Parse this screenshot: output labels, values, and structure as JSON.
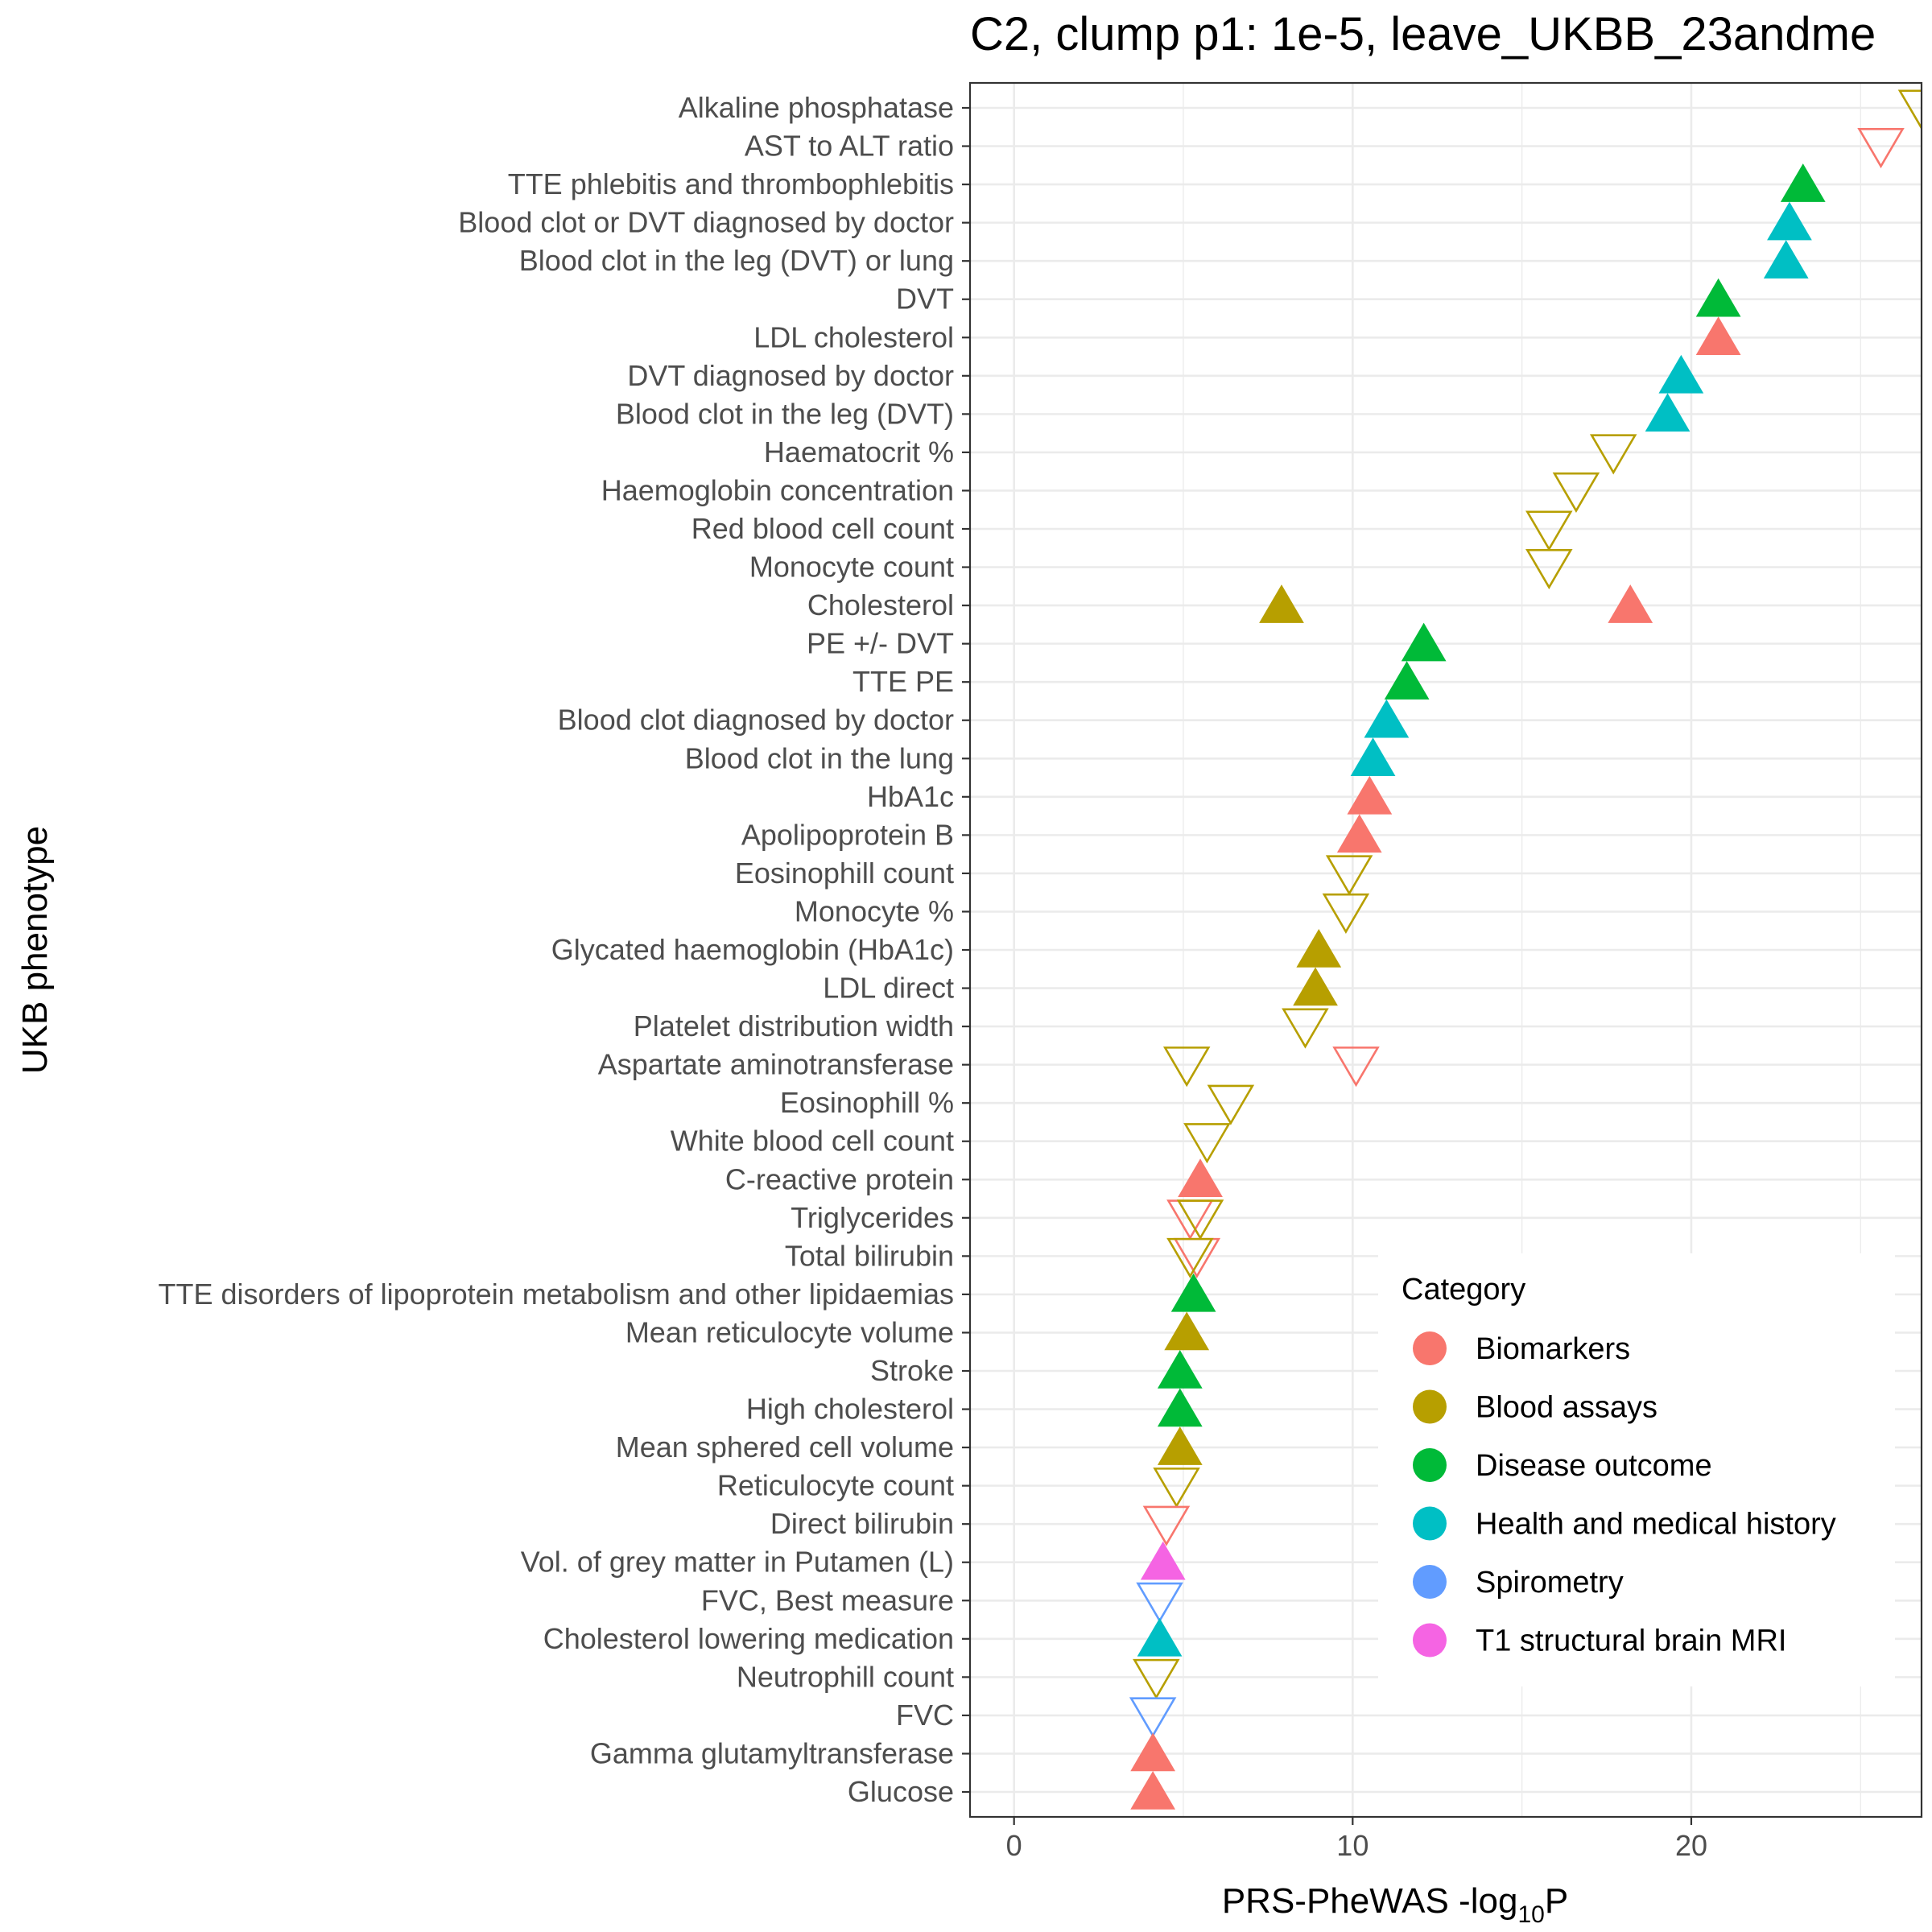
{
  "chart_data": {
    "type": "scatter",
    "title": "C2, clump p1: 1e-5, leave_UKBB_23andme",
    "xlabel": "PRS-PheWAS -log",
    "xlabel_sub": "10",
    "xlabel_suffix": "P",
    "ylabel": "UKB phenotype",
    "xlim": [
      -1.3,
      26.8
    ],
    "xticks": [
      0,
      10,
      20
    ],
    "grid": true,
    "legend": {
      "title": "Category",
      "placement": "bottom-right, inside plot",
      "entries": [
        {
          "name": "Biomarkers",
          "color": "#F8766D"
        },
        {
          "name": "Blood assays",
          "color": "#B79F00"
        },
        {
          "name": "Disease outcome",
          "color": "#00BA38"
        },
        {
          "name": "Health and medical history",
          "color": "#00BFC4"
        },
        {
          "name": "Spirometry",
          "color": "#619CFF"
        },
        {
          "name": "T1 structural brain MRI",
          "color": "#F564E3"
        }
      ]
    },
    "marker_encoding": {
      "filled_up_triangle": "positive effect",
      "open_down_triangle": "negative effect"
    },
    "categories": [
      "Alkaline phosphatase",
      "AST to ALT ratio",
      "TTE phlebitis and thrombophlebitis",
      "Blood clot or DVT diagnosed by doctor",
      "Blood clot in the leg (DVT) or lung",
      "DVT",
      "LDL cholesterol",
      "DVT diagnosed by doctor",
      "Blood clot in the leg (DVT)",
      "Haematocrit %",
      "Haemoglobin concentration",
      "Red blood cell count",
      "Monocyte count",
      "Cholesterol",
      "PE +/- DVT",
      "TTE PE",
      "Blood clot diagnosed by doctor",
      "Blood clot in the lung",
      "HbA1c",
      "Apolipoprotein B",
      "Eosinophill count",
      "Monocyte %",
      "Glycated haemoglobin (HbA1c)",
      "LDL direct",
      "Platelet distribution width",
      "Aspartate aminotransferase",
      "Eosinophill %",
      "White blood cell count",
      "C-reactive protein",
      "Triglycerides",
      "Total bilirubin",
      "TTE disorders of lipoprotein metabolism and other lipidaemias",
      "Mean reticulocyte volume",
      "Stroke",
      "High cholesterol",
      "Mean sphered cell volume",
      "Reticulocyte count",
      "Direct bilirubin",
      "Vol. of grey matter in Putamen (L)",
      "FVC, Best measure",
      "Cholesterol lowering medication",
      "Neutrophill count",
      "FVC",
      "Gamma glutamyltransferase",
      "Glucose"
    ],
    "points": [
      {
        "y": "Alkaline phosphatase",
        "x": 26.8,
        "category": "Blood assays",
        "direction": "down"
      },
      {
        "y": "AST to ALT ratio",
        "x": 25.6,
        "category": "Biomarkers",
        "direction": "down"
      },
      {
        "y": "TTE phlebitis and thrombophlebitis",
        "x": 23.3,
        "category": "Disease outcome",
        "direction": "up"
      },
      {
        "y": "Blood clot or DVT diagnosed by doctor",
        "x": 22.9,
        "category": "Health and medical history",
        "direction": "up"
      },
      {
        "y": "Blood clot in the leg (DVT) or lung",
        "x": 22.8,
        "category": "Health and medical history",
        "direction": "up"
      },
      {
        "y": "DVT",
        "x": 20.8,
        "category": "Disease outcome",
        "direction": "up"
      },
      {
        "y": "LDL cholesterol",
        "x": 20.8,
        "category": "Biomarkers",
        "direction": "up"
      },
      {
        "y": "DVT diagnosed by doctor",
        "x": 19.7,
        "category": "Health and medical history",
        "direction": "up"
      },
      {
        "y": "Blood clot in the leg (DVT)",
        "x": 19.3,
        "category": "Health and medical history",
        "direction": "up"
      },
      {
        "y": "Haematocrit %",
        "x": 17.7,
        "category": "Blood assays",
        "direction": "down"
      },
      {
        "y": "Haemoglobin concentration",
        "x": 16.6,
        "category": "Blood assays",
        "direction": "down"
      },
      {
        "y": "Red blood cell count",
        "x": 15.8,
        "category": "Blood assays",
        "direction": "down"
      },
      {
        "y": "Monocyte count",
        "x": 15.8,
        "category": "Blood assays",
        "direction": "down"
      },
      {
        "y": "Cholesterol",
        "x": 7.9,
        "category": "Blood assays",
        "direction": "up"
      },
      {
        "y": "Cholesterol",
        "x": 18.2,
        "category": "Biomarkers",
        "direction": "up"
      },
      {
        "y": "PE +/- DVT",
        "x": 12.1,
        "category": "Disease outcome",
        "direction": "up"
      },
      {
        "y": "TTE PE",
        "x": 11.6,
        "category": "Disease outcome",
        "direction": "up"
      },
      {
        "y": "Blood clot diagnosed by doctor",
        "x": 11.0,
        "category": "Health and medical history",
        "direction": "up"
      },
      {
        "y": "Blood clot in the lung",
        "x": 10.6,
        "category": "Health and medical history",
        "direction": "up"
      },
      {
        "y": "HbA1c",
        "x": 10.5,
        "category": "Biomarkers",
        "direction": "up"
      },
      {
        "y": "Apolipoprotein B",
        "x": 10.2,
        "category": "Biomarkers",
        "direction": "up"
      },
      {
        "y": "Eosinophill count",
        "x": 9.9,
        "category": "Blood assays",
        "direction": "down"
      },
      {
        "y": "Monocyte %",
        "x": 9.8,
        "category": "Blood assays",
        "direction": "down"
      },
      {
        "y": "Glycated haemoglobin (HbA1c)",
        "x": 9.0,
        "category": "Blood assays",
        "direction": "up"
      },
      {
        "y": "LDL direct",
        "x": 8.9,
        "category": "Blood assays",
        "direction": "up"
      },
      {
        "y": "Platelet distribution width",
        "x": 8.6,
        "category": "Blood assays",
        "direction": "down"
      },
      {
        "y": "Aspartate aminotransferase",
        "x": 5.1,
        "category": "Blood assays",
        "direction": "down"
      },
      {
        "y": "Aspartate aminotransferase",
        "x": 10.1,
        "category": "Biomarkers",
        "direction": "down"
      },
      {
        "y": "Eosinophill %",
        "x": 6.4,
        "category": "Blood assays",
        "direction": "down"
      },
      {
        "y": "White blood cell count",
        "x": 5.7,
        "category": "Blood assays",
        "direction": "down"
      },
      {
        "y": "C-reactive protein",
        "x": 5.5,
        "category": "Biomarkers",
        "direction": "up"
      },
      {
        "y": "Triglycerides",
        "x": 5.2,
        "category": "Biomarkers",
        "direction": "down"
      },
      {
        "y": "Triglycerides",
        "x": 5.5,
        "category": "Blood assays",
        "direction": "down"
      },
      {
        "y": "Total bilirubin",
        "x": 5.4,
        "category": "Biomarkers",
        "direction": "down"
      },
      {
        "y": "Total bilirubin",
        "x": 5.2,
        "category": "Blood assays",
        "direction": "down"
      },
      {
        "y": "TTE disorders of lipoprotein metabolism and other lipidaemias",
        "x": 5.3,
        "category": "Disease outcome",
        "direction": "up"
      },
      {
        "y": "Mean reticulocyte volume",
        "x": 5.1,
        "category": "Blood assays",
        "direction": "up"
      },
      {
        "y": "Stroke",
        "x": 4.9,
        "category": "Disease outcome",
        "direction": "up"
      },
      {
        "y": "High cholesterol",
        "x": 4.9,
        "category": "Disease outcome",
        "direction": "up"
      },
      {
        "y": "Mean sphered cell volume",
        "x": 4.9,
        "category": "Blood assays",
        "direction": "up"
      },
      {
        "y": "Reticulocyte count",
        "x": 4.8,
        "category": "Blood assays",
        "direction": "down"
      },
      {
        "y": "Direct bilirubin",
        "x": 4.5,
        "category": "Biomarkers",
        "direction": "down"
      },
      {
        "y": "Vol. of grey matter in Putamen (L)",
        "x": 4.4,
        "category": "T1 structural brain MRI",
        "direction": "up"
      },
      {
        "y": "FVC, Best measure",
        "x": 4.3,
        "category": "Spirometry",
        "direction": "down"
      },
      {
        "y": "Cholesterol lowering medication",
        "x": 4.3,
        "category": "Health and medical history",
        "direction": "up"
      },
      {
        "y": "Neutrophill count",
        "x": 4.2,
        "category": "Blood assays",
        "direction": "down"
      },
      {
        "y": "FVC",
        "x": 4.1,
        "category": "Spirometry",
        "direction": "down"
      },
      {
        "y": "Gamma glutamyltransferase",
        "x": 4.1,
        "category": "Biomarkers",
        "direction": "up"
      },
      {
        "y": "Glucose",
        "x": 4.1,
        "category": "Biomarkers",
        "direction": "up"
      }
    ]
  }
}
